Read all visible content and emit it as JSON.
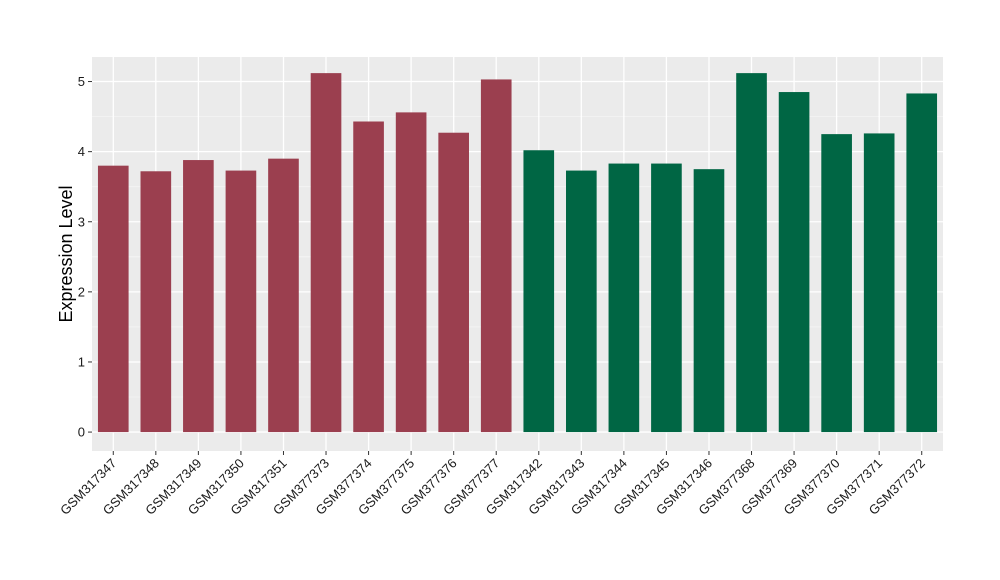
{
  "chart_data": {
    "type": "bar",
    "ylabel": "Expression Level",
    "xlabel": "",
    "title": "",
    "ylim": [
      -0.27,
      5.35
    ],
    "yticks": [
      0,
      1,
      2,
      3,
      4,
      5
    ],
    "grid": true,
    "legend": "none",
    "colors": {
      "group_a": "#9b3f4f",
      "group_b": "#006644",
      "panel": "#ebebeb",
      "gridline": "#ffffff"
    },
    "categories": [
      "GSM317347",
      "GSM317348",
      "GSM317349",
      "GSM317350",
      "GSM317351",
      "GSM377373",
      "GSM377374",
      "GSM377375",
      "GSM377376",
      "GSM377377",
      "GSM317342",
      "GSM317343",
      "GSM317344",
      "GSM317345",
      "GSM317346",
      "GSM377368",
      "GSM377369",
      "GSM377370",
      "GSM377371",
      "GSM377372"
    ],
    "values": [
      3.8,
      3.72,
      3.88,
      3.73,
      3.9,
      5.12,
      4.43,
      4.56,
      4.27,
      5.03,
      4.02,
      3.73,
      3.83,
      3.83,
      3.75,
      5.12,
      4.85,
      4.25,
      4.26,
      4.83
    ],
    "bar_groups": [
      "group_a",
      "group_a",
      "group_a",
      "group_a",
      "group_a",
      "group_a",
      "group_a",
      "group_a",
      "group_a",
      "group_a",
      "group_b",
      "group_b",
      "group_b",
      "group_b",
      "group_b",
      "group_b",
      "group_b",
      "group_b",
      "group_b",
      "group_b"
    ]
  }
}
